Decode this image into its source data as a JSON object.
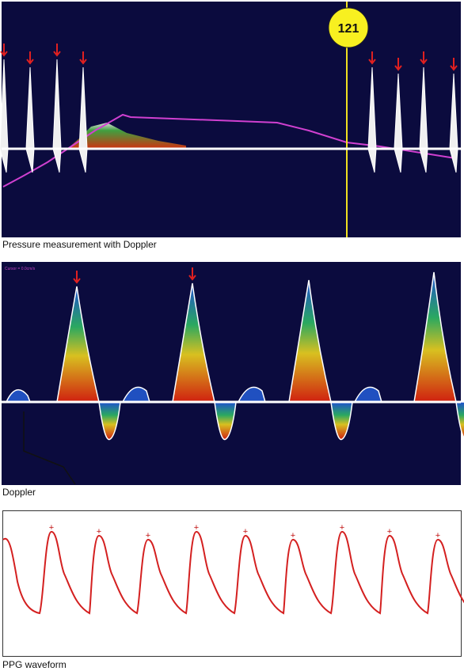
{
  "panels": [
    {
      "caption": "Pressure measurement with Doppler",
      "marker_label": "121"
    },
    {
      "caption": "Doppler",
      "cursor_text": "Cursor = 0.0cm/s"
    },
    {
      "caption": "PPG waveform"
    }
  ]
}
